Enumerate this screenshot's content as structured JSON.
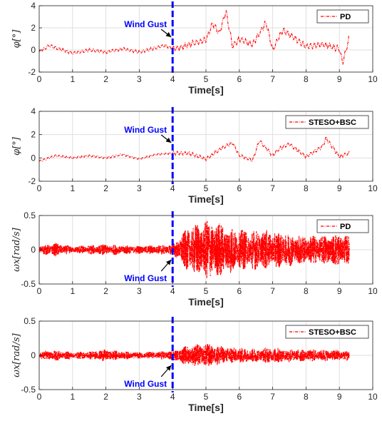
{
  "figure": {
    "panels": [
      {
        "id": "phi-pd",
        "xlabel": "Time[s]",
        "ylabel": "φ[°]",
        "legend": "PD",
        "annotation": "Wind Gust",
        "annotation_side": "above",
        "y_ticks": [
          "-2",
          "0",
          "2",
          "4"
        ],
        "x_ticks": [
          "0",
          "1",
          "2",
          "3",
          "4",
          "5",
          "6",
          "7",
          "8",
          "9",
          "10"
        ]
      },
      {
        "id": "phi-steso",
        "xlabel": "Time[s]",
        "ylabel": "φ[°]",
        "legend": "STESO+BSC",
        "annotation": "Wind Gust",
        "annotation_side": "above",
        "y_ticks": [
          "-2",
          "0",
          "2",
          "4"
        ],
        "x_ticks": [
          "0",
          "1",
          "2",
          "3",
          "4",
          "5",
          "6",
          "7",
          "8",
          "9",
          "10"
        ]
      },
      {
        "id": "omega-pd",
        "xlabel": "Time[s]",
        "ylabel": "ωx[rad/s]",
        "legend": "PD",
        "annotation": "Wind Gust",
        "annotation_side": "below",
        "y_ticks": [
          "-0.5",
          "0",
          "0.5"
        ],
        "x_ticks": [
          "0",
          "1",
          "2",
          "3",
          "4",
          "5",
          "6",
          "7",
          "8",
          "9",
          "10"
        ]
      },
      {
        "id": "omega-steso",
        "xlabel": "Time[s]",
        "ylabel": "ωx[rad/s]",
        "legend": "STESO+BSC",
        "annotation": "Wind Gust",
        "annotation_side": "below",
        "y_ticks": [
          "-0.5",
          "0",
          "0.5"
        ],
        "x_ticks": [
          "0",
          "1",
          "2",
          "3",
          "4",
          "5",
          "6",
          "7",
          "8",
          "9",
          "10"
        ]
      }
    ]
  },
  "chart_data": [
    {
      "type": "line",
      "xlabel": "Time[s]",
      "ylabel": "φ[°]",
      "xlim": [
        0,
        10
      ],
      "ylim": [
        -2,
        4
      ],
      "grid": true,
      "legend_position": "top-right",
      "series": [
        {
          "name": "PD",
          "color": "#ff0000",
          "style": "dash-dot",
          "x": [
            0,
            0.3,
            0.6,
            1.0,
            1.5,
            2.0,
            2.5,
            3.0,
            3.5,
            3.8,
            4.0,
            4.2,
            4.6,
            5.0,
            5.2,
            5.4,
            5.6,
            5.8,
            6.0,
            6.4,
            6.8,
            7.0,
            7.3,
            7.6,
            8.0,
            8.5,
            9.0,
            9.1,
            9.3
          ],
          "y": [
            -0.2,
            0.4,
            0.1,
            -0.3,
            0.0,
            -0.2,
            0.1,
            -0.2,
            0.2,
            0.4,
            0.1,
            0.2,
            0.6,
            0.9,
            2.4,
            1.5,
            3.5,
            0.3,
            1.0,
            0.5,
            2.5,
            0.0,
            1.8,
            1.2,
            0.3,
            0.5,
            0.1,
            -1.2,
            1.2
          ]
        }
      ],
      "gust_line_x": 4.0,
      "annotation": "Wind Gust"
    },
    {
      "type": "line",
      "xlabel": "Time[s]",
      "ylabel": "φ[°]",
      "xlim": [
        0,
        10
      ],
      "ylim": [
        -2,
        4
      ],
      "grid": true,
      "legend_position": "top-right",
      "series": [
        {
          "name": "STESO+BSC",
          "color": "#ff0000",
          "style": "dash-dot",
          "x": [
            0,
            0.5,
            1.0,
            1.5,
            2.0,
            2.5,
            3.0,
            3.5,
            4.0,
            4.5,
            5.0,
            5.5,
            5.8,
            6.0,
            6.4,
            6.6,
            7.0,
            7.2,
            7.5,
            8.0,
            8.5,
            8.6,
            9.0,
            9.3
          ],
          "y": [
            -0.3,
            0.2,
            0.0,
            0.2,
            0.0,
            0.3,
            -0.1,
            0.3,
            0.4,
            0.4,
            -0.1,
            0.9,
            1.3,
            0.2,
            -0.2,
            1.5,
            0.2,
            0.8,
            1.2,
            0.1,
            1.0,
            1.7,
            0.1,
            0.4
          ]
        }
      ],
      "gust_line_x": 4.0,
      "annotation": "Wind Gust"
    },
    {
      "type": "line",
      "xlabel": "Time[s]",
      "ylabel": "ωx[rad/s]",
      "xlim": [
        0,
        10
      ],
      "ylim": [
        -0.5,
        0.5
      ],
      "grid": true,
      "legend_position": "top-right",
      "series": [
        {
          "name": "PD",
          "color": "#ff0000",
          "style": "dash-dot",
          "x": [
            0,
            0.5,
            1.0,
            1.5,
            2.0,
            2.5,
            3.0,
            3.5,
            4.0,
            4.5,
            5.0,
            5.5,
            6.0,
            6.5,
            7.0,
            7.5,
            8.0,
            8.5,
            9.0,
            9.3
          ],
          "amplitude": [
            0.06,
            0.1,
            0.05,
            0.07,
            0.08,
            0.07,
            0.06,
            0.07,
            0.08,
            0.35,
            0.45,
            0.4,
            0.3,
            0.3,
            0.28,
            0.25,
            0.22,
            0.22,
            0.25,
            0.2
          ]
        }
      ],
      "gust_line_x": 4.0,
      "annotation": "Wind Gust"
    },
    {
      "type": "line",
      "xlabel": "Time[s]",
      "ylabel": "ωx[rad/s]",
      "xlim": [
        0,
        10
      ],
      "ylim": [
        -0.5,
        0.5
      ],
      "grid": true,
      "legend_position": "top-right",
      "series": [
        {
          "name": "STESO+BSC",
          "color": "#ff0000",
          "style": "dash-dot",
          "x": [
            0,
            0.5,
            1.0,
            1.5,
            2.0,
            2.5,
            3.0,
            3.5,
            4.0,
            4.5,
            5.0,
            5.5,
            6.0,
            6.5,
            7.0,
            7.5,
            8.0,
            8.5,
            9.0,
            9.3
          ],
          "amplitude": [
            0.05,
            0.08,
            0.05,
            0.06,
            0.09,
            0.06,
            0.05,
            0.06,
            0.07,
            0.16,
            0.18,
            0.14,
            0.12,
            0.1,
            0.12,
            0.1,
            0.09,
            0.09,
            0.08,
            0.08
          ]
        }
      ],
      "gust_line_x": 4.0,
      "annotation": "Wind Gust"
    }
  ],
  "colors": {
    "series": "#ff0000",
    "gust_line": "#0000ff",
    "gust_text": "#0000ff",
    "axis": "#262626",
    "grid": "#dfdfdf"
  }
}
